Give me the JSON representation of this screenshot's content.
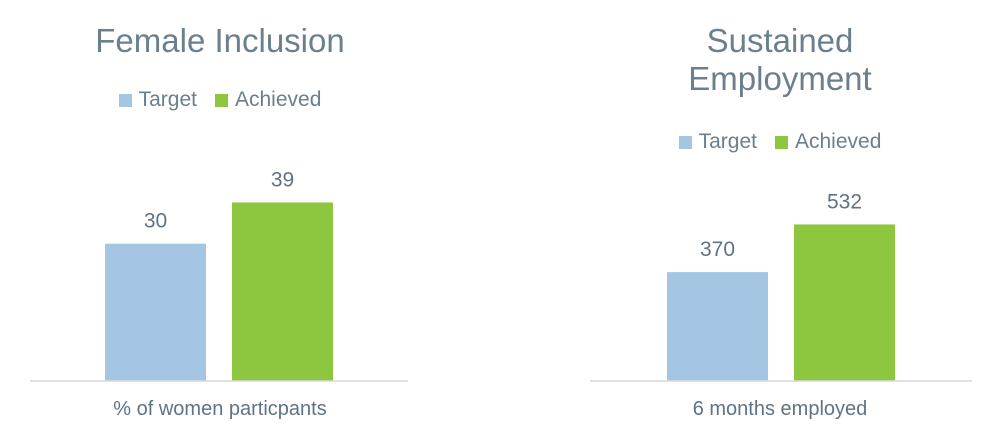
{
  "chart_data": [
    {
      "type": "bar",
      "title": "Female Inclusion",
      "categories": [
        "Target",
        "Achieved"
      ],
      "series": [
        {
          "name": "Target",
          "values": [
            30,
            null
          ]
        },
        {
          "name": "Achieved",
          "values": [
            null,
            39
          ]
        }
      ],
      "values": [
        30,
        39
      ],
      "data_labels": [
        "30",
        "39"
      ],
      "legend": [
        "Target",
        "Achieved"
      ],
      "legend_position": "top",
      "xlabel": "% of women particpants",
      "ylabel": "",
      "ylim": [
        0,
        45
      ],
      "grid": false,
      "colors": [
        "#a4c6e3",
        "#8dc63f"
      ]
    },
    {
      "type": "bar",
      "title": "Sustained Employment",
      "categories": [
        "Target",
        "Achieved"
      ],
      "series": [
        {
          "name": "Target",
          "values": [
            370,
            null
          ]
        },
        {
          "name": "Achieved",
          "values": [
            null,
            532
          ]
        }
      ],
      "values": [
        370,
        532
      ],
      "data_labels": [
        "370",
        "532"
      ],
      "legend": [
        "Target",
        "Achieved"
      ],
      "legend_position": "top",
      "xlabel": "6 months employed",
      "ylabel": "",
      "ylim": [
        0,
        700
      ],
      "grid": false,
      "colors": [
        "#a4c6e3",
        "#8dc63f"
      ]
    }
  ]
}
